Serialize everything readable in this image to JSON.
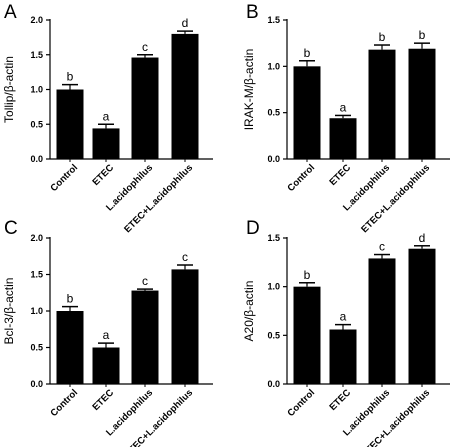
{
  "chart_data": [
    {
      "type": "bar",
      "panel": "A",
      "ylabel": "Tollip/β-actin",
      "categories": [
        "Control",
        "ETEC",
        "L.acidophilus",
        "ETEC+L.acidophilus"
      ],
      "values": [
        1.0,
        0.44,
        1.46,
        1.8
      ],
      "errors": [
        0.07,
        0.06,
        0.04,
        0.04
      ],
      "significance": [
        "b",
        "a",
        "c",
        "d"
      ],
      "ylim": [
        0,
        2.0
      ],
      "yticks": [
        "0.0",
        "0.5",
        "1.0",
        "1.5",
        "2.0"
      ],
      "colors": {
        "bar": "#000000"
      }
    },
    {
      "type": "bar",
      "panel": "B",
      "ylabel": "IRAK-M/β-actin",
      "categories": [
        "Control",
        "ETEC",
        "L.acidophilus",
        "ETEC+L.acidophilus"
      ],
      "values": [
        1.0,
        0.44,
        1.18,
        1.19
      ],
      "errors": [
        0.06,
        0.03,
        0.05,
        0.06
      ],
      "significance": [
        "b",
        "a",
        "b",
        "b"
      ],
      "ylim": [
        0,
        1.5
      ],
      "yticks": [
        "0.0",
        "0.5",
        "1.0",
        "1.5"
      ],
      "colors": {
        "bar": "#000000"
      }
    },
    {
      "type": "bar",
      "panel": "C",
      "ylabel": "Bcl-3/β-actin",
      "categories": [
        "Control",
        "ETEC",
        "L.acidophilus",
        "ETEC+L.acidophilus"
      ],
      "values": [
        1.0,
        0.5,
        1.28,
        1.57
      ],
      "errors": [
        0.06,
        0.06,
        0.02,
        0.06
      ],
      "significance": [
        "b",
        "a",
        "c",
        "c"
      ],
      "ylim": [
        0,
        2.0
      ],
      "yticks": [
        "0.0",
        "0.5",
        "1.0",
        "1.5",
        "2.0"
      ],
      "colors": {
        "bar": "#000000"
      }
    },
    {
      "type": "bar",
      "panel": "D",
      "ylabel": "A20/β-actin",
      "categories": [
        "Control",
        "ETEC",
        "L.acidophilus",
        "ETEC+L.acidophilus"
      ],
      "values": [
        1.0,
        0.56,
        1.29,
        1.39
      ],
      "errors": [
        0.04,
        0.05,
        0.04,
        0.03
      ],
      "significance": [
        "b",
        "a",
        "c",
        "d"
      ],
      "ylim": [
        0,
        1.5
      ],
      "yticks": [
        "0.0",
        "0.5",
        "1.0",
        "1.5"
      ],
      "colors": {
        "bar": "#000000"
      }
    }
  ]
}
